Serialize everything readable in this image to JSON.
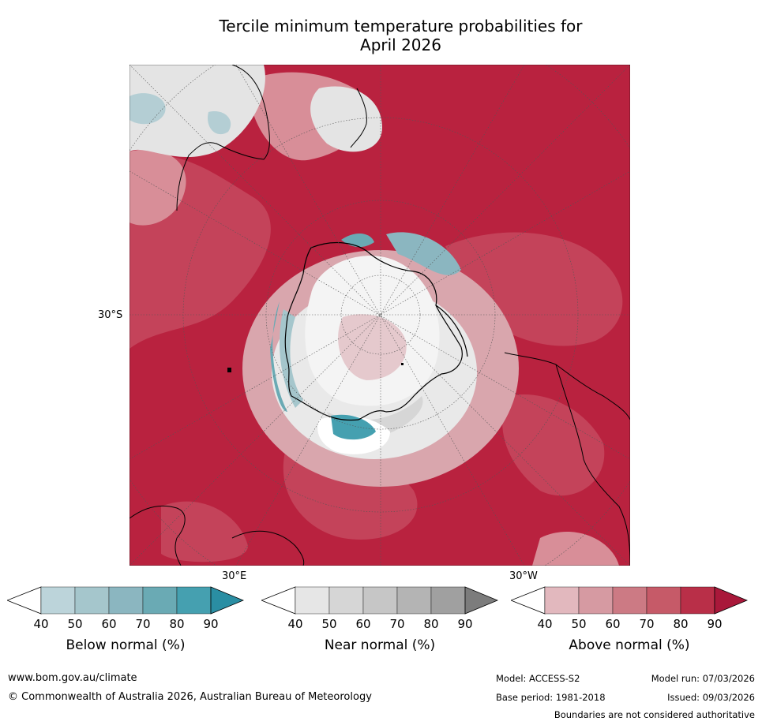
{
  "title_line1": "Tercile minimum temperature probabilities for",
  "title_line2": "April 2026",
  "map": {
    "lat_label": "30°S",
    "lon_label_left": "30°E",
    "lon_label_right": "30°W"
  },
  "colorbars": [
    {
      "label": "Below normal (%)",
      "ticks": [
        "40",
        "50",
        "60",
        "70",
        "80",
        "90"
      ],
      "colors": [
        "#ffffff",
        "#bcd4da",
        "#a5c6cc",
        "#8bb6c0",
        "#6aaab4",
        "#45a0b0",
        "#2a8ea3"
      ]
    },
    {
      "label": "Near normal (%)",
      "ticks": [
        "40",
        "50",
        "60",
        "70",
        "80",
        "90"
      ],
      "colors": [
        "#ffffff",
        "#e6e6e6",
        "#d6d6d6",
        "#c6c6c6",
        "#b4b4b4",
        "#a0a0a0",
        "#7c7c7c"
      ]
    },
    {
      "label": "Above normal (%)",
      "ticks": [
        "40",
        "50",
        "60",
        "70",
        "80",
        "90"
      ],
      "colors": [
        "#ffffff",
        "#e2b8be",
        "#d69aa2",
        "#cc7a84",
        "#c65a68",
        "#b92f48",
        "#a9183a"
      ]
    }
  ],
  "footer": {
    "website": "www.bom.gov.au/climate",
    "copyright": "© Commonwealth of Australia 2026, Australian Bureau of Meteorology",
    "model": "Model: ACCESS-S2",
    "model_run": "Model run: 07/03/2026",
    "base_period": "Base period: 1981-2018",
    "issued": "Issued: 09/03/2026",
    "disclaimer": "Boundaries are not considered authoritative"
  },
  "chart_data": {
    "type": "heatmap",
    "title": "Tercile minimum temperature probabilities for April 2026",
    "projection": "south-polar stereographic",
    "graticule_labels": [
      "30°S",
      "30°E",
      "30°W"
    ],
    "categories": [
      "Below normal (%)",
      "Near normal (%)",
      "Above normal (%)"
    ],
    "levels": [
      40,
      50,
      60,
      70,
      80,
      90
    ],
    "dominant_category": "Above normal (%)"
  }
}
